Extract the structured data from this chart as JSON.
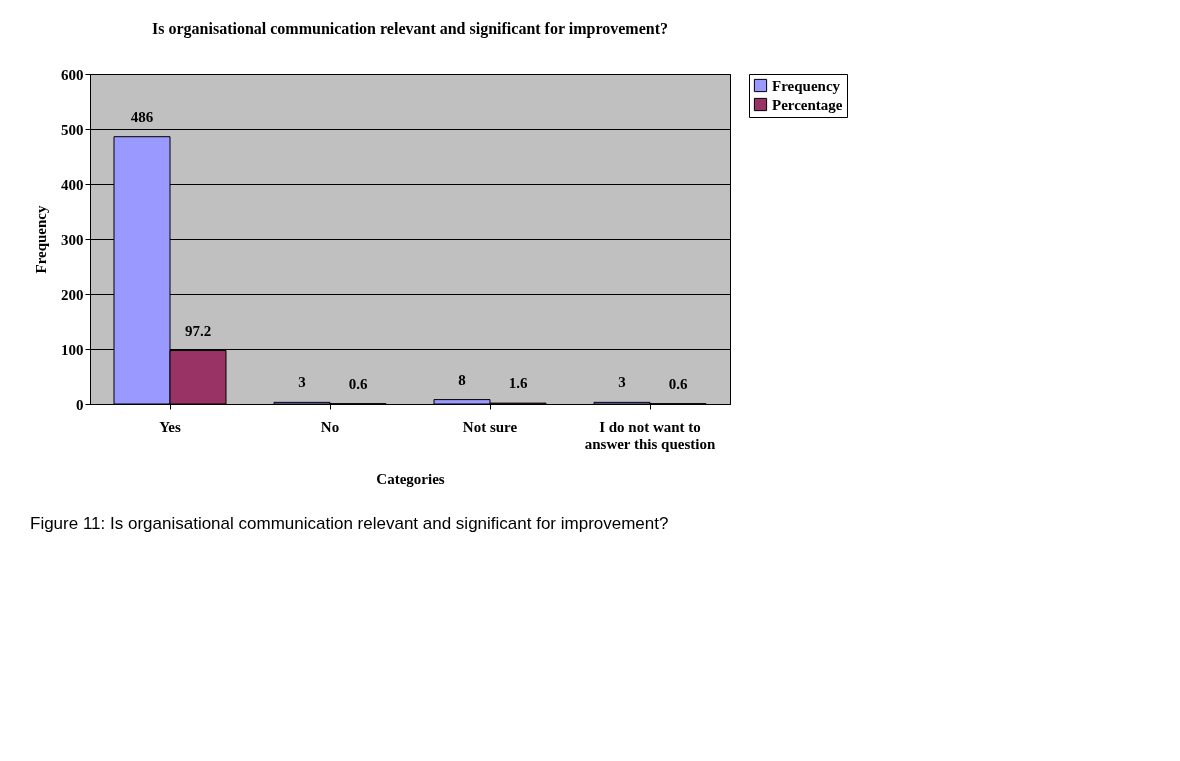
{
  "chart_data": {
    "type": "bar",
    "title": "Is organisational communication relevant and significant for improvement?",
    "xlabel": "Categories",
    "ylabel": "Frequency",
    "categories": [
      "Yes",
      "No",
      "Not sure",
      "I do not want to answer this question"
    ],
    "series": [
      {
        "name": "Frequency",
        "color": "#9999ff",
        "values": [
          486,
          3,
          8,
          3
        ]
      },
      {
        "name": "Percentage",
        "color": "#993366",
        "values": [
          97.2,
          0.6,
          1.6,
          0.6
        ]
      }
    ],
    "ylim": [
      0,
      600
    ],
    "yticks": [
      0,
      100,
      200,
      300,
      400,
      500,
      600
    ],
    "grid": "y",
    "legend": "right",
    "data_labels": true,
    "annotations": [
      "Figure 11: Is organisational communication relevant and significant for improvement?"
    ]
  }
}
